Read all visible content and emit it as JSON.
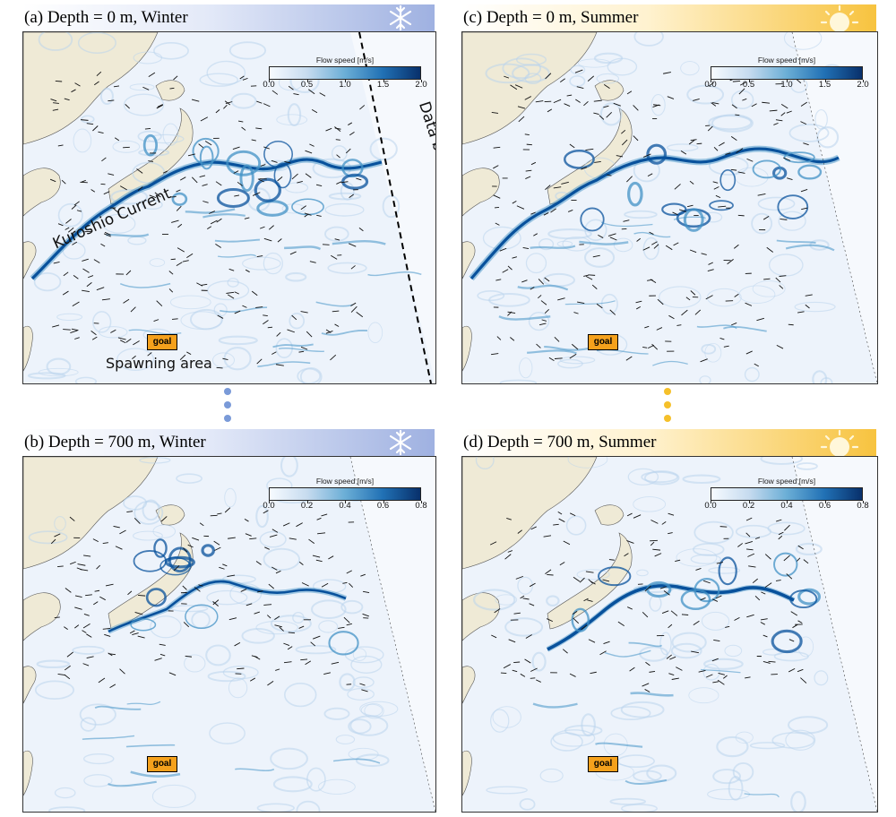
{
  "figure": {
    "panels": [
      {
        "id": "a",
        "title": "(a) Depth = 0 m, Winter",
        "season": "winter",
        "depth_m": 0,
        "icon": "snowflake-icon",
        "colorbar": {
          "label": "Flow speed [m/s]",
          "ticks": [
            "0.0",
            "0.5",
            "1.0",
            "1.5",
            "2.0"
          ],
          "min": 0.0,
          "max": 2.0
        },
        "goal_label": "goal"
      },
      {
        "id": "b",
        "title": "(b) Depth = 700 m, Winter",
        "season": "winter",
        "depth_m": 700,
        "icon": "snowflake-icon",
        "colorbar": {
          "label": "Flow speed [m/s]",
          "ticks": [
            "0.0",
            "0.2",
            "0.4",
            "0.6",
            "0.8"
          ],
          "min": 0.0,
          "max": 0.8
        },
        "goal_label": "goal"
      },
      {
        "id": "c",
        "title": "(c) Depth = 0 m, Summer",
        "season": "summer",
        "depth_m": 0,
        "icon": "sun-icon",
        "colorbar": {
          "label": "Flow speed [m/s]",
          "ticks": [
            "0.0",
            "0.5",
            "1.0",
            "1.5",
            "2.0"
          ],
          "min": 0.0,
          "max": 2.0
        },
        "goal_label": "goal"
      },
      {
        "id": "d",
        "title": "(d) Depth = 700 m, Summer",
        "season": "summer",
        "depth_m": 700,
        "icon": "sun-icon",
        "colorbar": {
          "label": "Flow speed [m/s]",
          "ticks": [
            "0.0",
            "0.2",
            "0.4",
            "0.6",
            "0.8"
          ],
          "min": 0.0,
          "max": 0.8
        },
        "goal_label": "goal"
      }
    ],
    "annotations": {
      "kuroshio": "Kuroshio Current",
      "data_boundary": "Data boundary",
      "spawning_area": "Spawning area"
    },
    "colors": {
      "land": "#efead6",
      "ocean_base": "#edf3fb",
      "current_strong": "#08519c",
      "current_medium": "#4292c6",
      "goal_box": "#f5a11c",
      "winter_accent": "#9fb1e1",
      "summer_accent": "#f7c33f",
      "winter_dot": "#7a9ad8",
      "summer_dot": "#f5c02a"
    }
  }
}
